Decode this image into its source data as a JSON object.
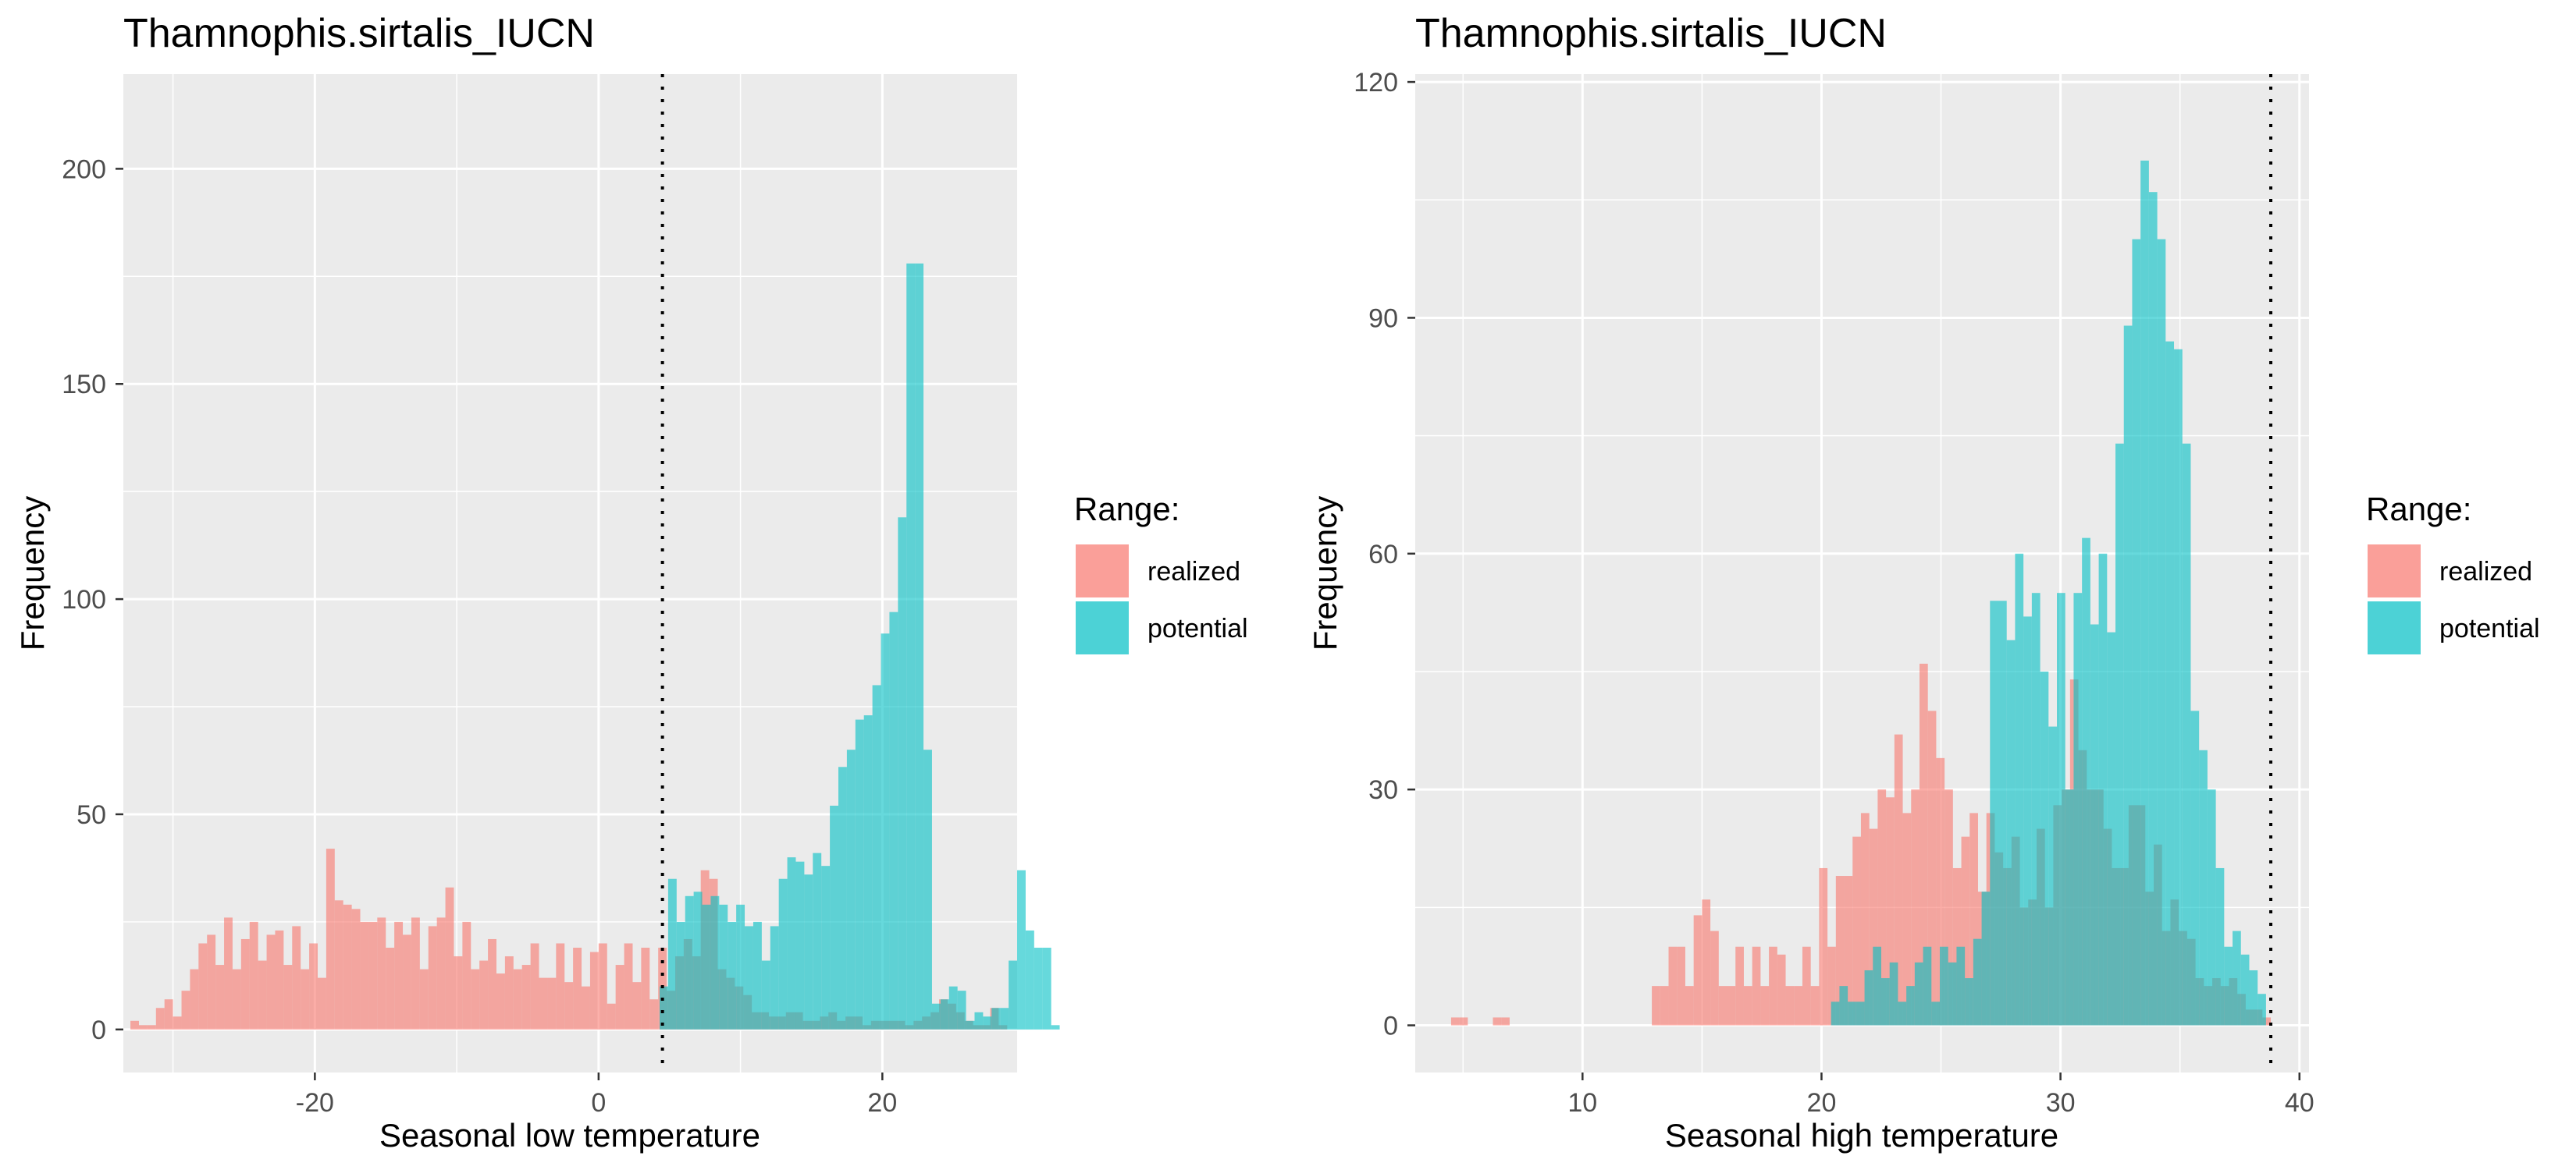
{
  "colors": {
    "realized": "#F8766D",
    "potential": "#00BFC4",
    "panel": "#EBEBEB",
    "grid": "#FFFFFF"
  },
  "legend": {
    "title": "Range:",
    "items": [
      "realized",
      "potential"
    ]
  },
  "chart_data": [
    {
      "type": "bar",
      "title": "Thamnophis.sirtalis_IUCN",
      "xlabel": "Seasonal low temperature",
      "ylabel": "Frequency",
      "xlim": [
        -33.5,
        29.5
      ],
      "ylim": [
        -10,
        222
      ],
      "xticks": [
        -20,
        0,
        20
      ],
      "yticks": [
        0,
        50,
        100,
        150,
        200
      ],
      "grid": true,
      "legend_position": "right",
      "overlay": true,
      "vline": 4.5,
      "bin_width": 0.6,
      "series": [
        {
          "name": "realized",
          "x_start": -33,
          "values": [
            2,
            1,
            1,
            5,
            7,
            3,
            9,
            14,
            20,
            22,
            15,
            26,
            14,
            21,
            25,
            16,
            22,
            23,
            15,
            24,
            14,
            20,
            12,
            42,
            30,
            29,
            28,
            25,
            25,
            26,
            19,
            25,
            22,
            26,
            14,
            24,
            26,
            33,
            17,
            25,
            14,
            16,
            21,
            13,
            17,
            14,
            15,
            20,
            12,
            12,
            20,
            11,
            19,
            10,
            18,
            20,
            6,
            15,
            20,
            11,
            19,
            7,
            19,
            9,
            17,
            21,
            17,
            37,
            35,
            14,
            12,
            10,
            8,
            4,
            4,
            3,
            3,
            4,
            4,
            2,
            2,
            3,
            4,
            2,
            3,
            3,
            1,
            2,
            2,
            2,
            2,
            1,
            2,
            3,
            4,
            7,
            6,
            4,
            2,
            1,
            1,
            5,
            1
          ]
        },
        {
          "name": "potential",
          "x_start": 4.3,
          "values": [
            10,
            35,
            25,
            31,
            32,
            29,
            31,
            29,
            25,
            29,
            24,
            25,
            16,
            24,
            35,
            40,
            39,
            36,
            41,
            38,
            52,
            61,
            65,
            72,
            73,
            80,
            92,
            97,
            119,
            178,
            178,
            65,
            6,
            7,
            10,
            9,
            2,
            4,
            3,
            5,
            5,
            16,
            37,
            23,
            19,
            19,
            1
          ]
        }
      ]
    },
    {
      "type": "bar",
      "title": "Thamnophis.sirtalis_IUCN",
      "xlabel": "Seasonal high temperature",
      "ylabel": "Frequency",
      "xlim": [
        3,
        40.4
      ],
      "ylim": [
        -6,
        121
      ],
      "xticks": [
        10,
        20,
        30,
        40
      ],
      "yticks": [
        0,
        30,
        60,
        90,
        120
      ],
      "grid": true,
      "legend_position": "right",
      "overlay": true,
      "vline": 38.8,
      "bin_width": 0.35,
      "series": [
        {
          "name": "realized",
          "x_start": 4.5,
          "values": [
            1,
            1,
            0,
            0,
            0,
            1,
            1,
            0,
            0,
            0,
            0,
            0,
            0,
            0,
            0,
            0,
            0,
            0,
            0,
            0,
            0,
            0,
            0,
            0,
            5,
            5,
            10,
            10,
            5,
            14,
            16,
            12,
            5,
            5,
            10,
            5,
            10,
            5,
            10,
            9,
            5,
            5,
            10,
            5,
            20,
            10,
            19,
            19,
            24,
            27,
            25,
            30,
            29,
            37,
            27,
            30,
            46,
            40,
            34,
            30,
            20,
            24,
            27,
            17,
            27,
            22,
            20,
            24,
            15,
            16,
            25,
            15,
            28,
            30,
            44,
            35,
            30,
            30,
            25,
            20,
            20,
            28,
            28,
            17,
            23,
            12,
            16,
            12,
            11,
            6,
            5,
            6,
            5,
            6,
            4,
            2,
            2,
            1
          ]
        },
        {
          "name": "potential",
          "x_start": 20.4,
          "values": [
            3,
            5,
            3,
            3,
            7,
            10,
            6,
            8,
            3,
            5,
            8,
            10,
            3,
            10,
            8,
            10,
            6,
            11,
            17,
            54,
            54,
            49,
            60,
            52,
            55,
            45,
            38,
            55,
            30,
            55,
            62,
            51,
            60,
            50,
            74,
            89,
            100,
            110,
            106,
            100,
            87,
            86,
            74,
            40,
            35,
            30,
            20,
            10,
            12,
            9,
            7,
            4
          ]
        }
      ]
    }
  ]
}
